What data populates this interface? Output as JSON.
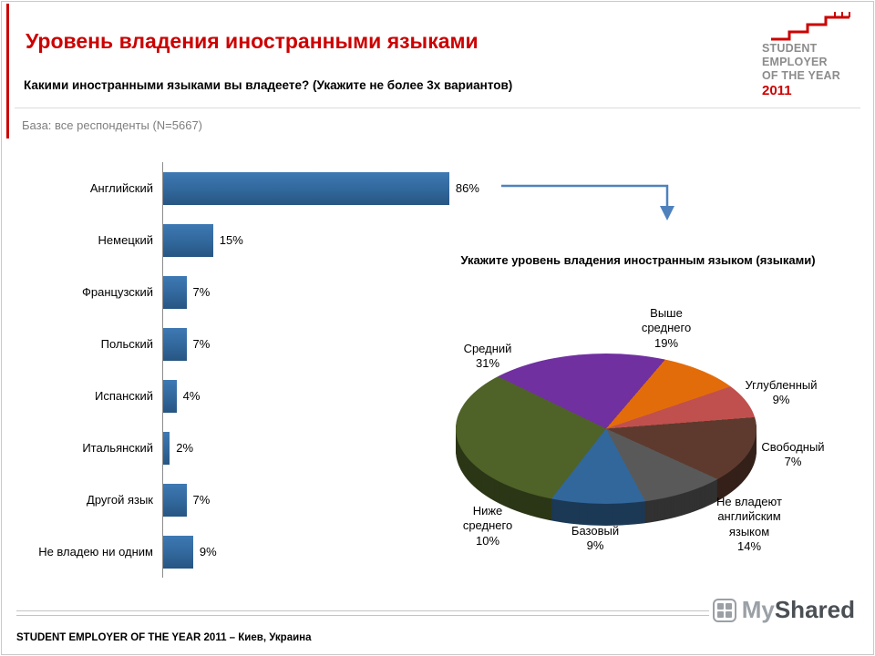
{
  "header": {
    "title": "Уровень владения иностранными языками",
    "question": "Какими иностранными языками вы владеете? (Укажите не более 3х вариантов)",
    "base_note": "База: все респонденты (N=5667)"
  },
  "logo": {
    "line1": "STUDENT",
    "line2": "EMPLOYER",
    "line3": "OF THE YEAR",
    "year": "2011"
  },
  "pie_section": {
    "title": "Укажите уровень владения иностранным языком (языками)"
  },
  "footer": {
    "text": "STUDENT EMPLOYER OF THE YEAR 2011 – Киев, Украина",
    "watermark_my": "My",
    "watermark_shared": "Shared"
  },
  "colors": {
    "accent_red": "#cc0000",
    "bar_blue": "#31679b"
  },
  "chart_data": [
    {
      "type": "bar",
      "orientation": "horizontal",
      "title": "Какими иностранными языками вы владеете?",
      "categories": [
        "Английский",
        "Немецкий",
        "Французский",
        "Польский",
        "Испанский",
        "Итальянский",
        "Другой язык",
        "Не владею ни одним"
      ],
      "values": [
        86,
        15,
        7,
        7,
        4,
        2,
        7,
        9
      ],
      "value_labels": [
        "86%",
        "15%",
        "7%",
        "7%",
        "4%",
        "2%",
        "7%",
        "9%"
      ],
      "xlim": [
        0,
        100
      ],
      "bar_color": "#31679b",
      "grid": false,
      "legend_position": "none"
    },
    {
      "type": "pie",
      "style": "3d",
      "title": "Укажите уровень владения иностранным языком (языками)",
      "labels": [
        "Выше среднего",
        "Углубленный",
        "Свободный",
        "Не владеют английским языком",
        "Базовый",
        "Ниже среднего",
        "Средний"
      ],
      "values": [
        19,
        9,
        7,
        14,
        9,
        10,
        31
      ],
      "colors": [
        "#7030a0",
        "#e36c0a",
        "#c0504d",
        "#5e3a2e",
        "#595959",
        "#31679b",
        "#4f6228"
      ],
      "point_labels": [
        "Выше\nсреднего\n19%",
        "Углубленный\n9%",
        "Свободный\n7%",
        "Не владеют\nанглийским\nязыком\n14%",
        "Базовый\n9%",
        "Ниже\nсреднего\n10%",
        "Средний\n31%"
      ],
      "start_angle_deg": -46,
      "legend_position": "labels-around"
    }
  ]
}
